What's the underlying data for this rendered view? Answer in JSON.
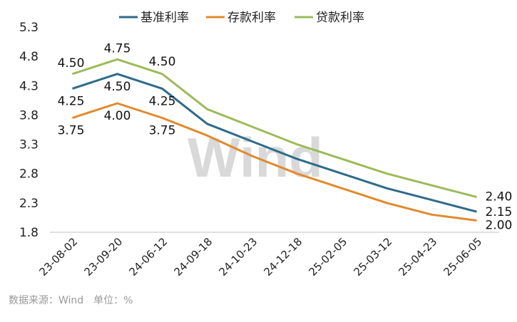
{
  "chart_data": {
    "type": "line",
    "categories": [
      "23-08-02",
      "23-09-20",
      "24-06-12",
      "24-09-18",
      "24-10-23",
      "24-12-18",
      "25-02-05",
      "25-03-12",
      "25-04-23",
      "25-06-05"
    ],
    "series": [
      {
        "name": "基准利率",
        "color": "#2e6b8a",
        "values": [
          4.25,
          4.5,
          4.25,
          3.65,
          3.35,
          3.05,
          2.8,
          2.55,
          2.35,
          2.15
        ]
      },
      {
        "name": "存款利率",
        "color": "#e08a2c",
        "values": [
          3.75,
          4.0,
          3.75,
          3.45,
          3.1,
          2.8,
          2.55,
          2.3,
          2.1,
          2.0
        ]
      },
      {
        "name": "贷款利率",
        "color": "#9bbb59",
        "values": [
          4.5,
          4.75,
          4.5,
          3.9,
          3.6,
          3.3,
          3.05,
          2.8,
          2.6,
          2.4
        ]
      }
    ],
    "data_labels": [
      {
        "series": 2,
        "index": 0,
        "text": "4.50"
      },
      {
        "series": 0,
        "index": 0,
        "text": "4.25"
      },
      {
        "series": 1,
        "index": 0,
        "text": "3.75"
      },
      {
        "series": 2,
        "index": 1,
        "text": "4.75"
      },
      {
        "series": 0,
        "index": 1,
        "text": "4.50"
      },
      {
        "series": 1,
        "index": 1,
        "text": "4.00"
      },
      {
        "series": 2,
        "index": 2,
        "text": "4.50"
      },
      {
        "series": 0,
        "index": 2,
        "text": "4.25"
      },
      {
        "series": 1,
        "index": 2,
        "text": "3.75"
      },
      {
        "series": 2,
        "index": 9,
        "text": "2.40"
      },
      {
        "series": 0,
        "index": 9,
        "text": "2.15"
      },
      {
        "series": 1,
        "index": 9,
        "text": "2.00"
      }
    ],
    "y_ticks": [
      "1.8",
      "2.3",
      "2.8",
      "3.3",
      "3.8",
      "4.3",
      "4.8",
      "5.3"
    ],
    "ylim": [
      1.8,
      5.3
    ],
    "legend_position": "top",
    "grid": false
  },
  "watermark": "Wind",
  "source": "数据来源：Wind　单位：%"
}
